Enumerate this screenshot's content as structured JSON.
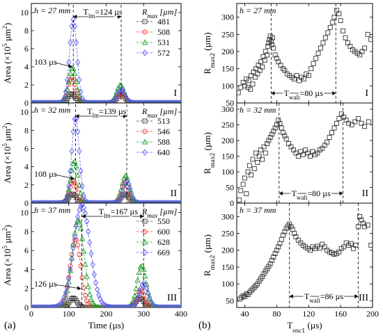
{
  "figure": {
    "label_a": "(a)",
    "label_b": "(b)"
  },
  "colors": {
    "black": "#333333",
    "red": "#e8322d",
    "green": "#1f9e2b",
    "blue": "#5a5af0",
    "axis": "#000000"
  },
  "chart_data": [
    {
      "type": "line",
      "panel": "a-I",
      "roman": "I",
      "h_label": "h = 27 mm",
      "t_label": "T_lm=124 µs",
      "delay_label": "103 µs",
      "ylabel": "Area (×10^5 µm^2)",
      "xlabel": "",
      "xlim": [
        0,
        400
      ],
      "ylim": [
        0,
        11
      ],
      "yticks": [
        0,
        2,
        4,
        6,
        8,
        10
      ],
      "xticks": [
        0,
        100,
        200,
        300,
        400
      ],
      "legend_title": "R_max [µm]",
      "series": [
        {
          "name": "481",
          "color": "black",
          "marker": "square",
          "peaks": [
            [
              108,
              1.0,
              10
            ],
            [
              240,
              1.0,
              10
            ]
          ]
        },
        {
          "name": "508",
          "color": "red",
          "marker": "circle",
          "peaks": [
            [
              108,
              2.8,
              10
            ],
            [
              238,
              1.1,
              10
            ]
          ]
        },
        {
          "name": "531",
          "color": "green",
          "marker": "triangle",
          "peaks": [
            [
              110,
              3.9,
              10
            ],
            [
              238,
              2.0,
              10
            ]
          ]
        },
        {
          "name": "572",
          "color": "blue",
          "marker": "diamond",
          "peaks": [
            [
              112,
              9.2,
              10
            ],
            [
              240,
              1.5,
              10
            ]
          ]
        }
      ]
    },
    {
      "type": "line",
      "panel": "a-II",
      "roman": "II",
      "h_label": "h = 32 mm",
      "t_label": "T_lm=139 µs",
      "delay_label": "108 µs",
      "ylabel": "Area (×10^5 µm^2)",
      "xlabel": "",
      "xlim": [
        0,
        400
      ],
      "ylim": [
        0,
        11
      ],
      "yticks": [
        0,
        2,
        4,
        6,
        8,
        10
      ],
      "xticks": [
        0,
        100,
        200,
        300,
        400
      ],
      "legend_title": "R_max [µm]",
      "series": [
        {
          "name": "513",
          "color": "black",
          "marker": "square",
          "peaks": [
            [
              110,
              1.0,
              10
            ],
            [
              250,
              1.0,
              10
            ]
          ]
        },
        {
          "name": "546",
          "color": "red",
          "marker": "circle",
          "peaks": [
            [
              112,
              2.4,
              10
            ],
            [
              250,
              2.2,
              10
            ]
          ]
        },
        {
          "name": "588",
          "color": "green",
          "marker": "triangle",
          "peaks": [
            [
              115,
              4.6,
              10
            ],
            [
              252,
              3.0,
              10
            ]
          ]
        },
        {
          "name": "640",
          "color": "blue",
          "marker": "diamond",
          "peaks": [
            [
              118,
              9.4,
              10
            ],
            [
              255,
              2.4,
              10
            ]
          ]
        }
      ]
    },
    {
      "type": "line",
      "panel": "a-III",
      "roman": "III",
      "h_label": "h = 37 mm",
      "t_label": "T_lm=167 µs",
      "delay_label": "126 µs",
      "ylabel": "Area (×10^5 µm^2)",
      "xlabel": "Time (µs)",
      "xlim": [
        0,
        400
      ],
      "ylim": [
        0,
        11
      ],
      "yticks": [
        0,
        2,
        4,
        6,
        8,
        10
      ],
      "xticks": [
        0,
        100,
        200,
        300,
        400
      ],
      "legend_title": "R_max [µm]",
      "series": [
        {
          "name": "550",
          "color": "black",
          "marker": "square",
          "peaks": [
            [
              112,
              1.0,
              10
            ],
            [
              290,
              1.0,
              10
            ]
          ]
        },
        {
          "name": "600",
          "color": "red",
          "marker": "circle",
          "peaks": [
            [
              118,
              7.2,
              14
            ],
            [
              292,
              1.8,
              10
            ]
          ]
        },
        {
          "name": "628",
          "color": "green",
          "marker": "triangle",
          "peaks": [
            [
              125,
              9.2,
              16
            ],
            [
              295,
              4.4,
              12
            ]
          ]
        },
        {
          "name": "669",
          "color": "blue",
          "marker": "diamond",
          "peaks": [
            [
              135,
              10.8,
              22
            ],
            [
              300,
              2.5,
              12
            ]
          ]
        }
      ]
    },
    {
      "type": "scatter",
      "panel": "b-I",
      "roman": "I",
      "h_label": "h = 27 mm",
      "t_label": "T_wall=80 µs",
      "ylabel": "R_max2 (µm)",
      "xlabel": "",
      "xlim": [
        30,
        200
      ],
      "ylim": [
        50,
        340
      ],
      "yticks": [
        50,
        100,
        150,
        200,
        250,
        300
      ],
      "xticks": [
        40,
        80,
        120,
        160,
        200
      ],
      "vlines": [
        73,
        154
      ],
      "points": [
        [
          32,
          80
        ],
        [
          35,
          95
        ],
        [
          38,
          110
        ],
        [
          40,
          100
        ],
        [
          42,
          120
        ],
        [
          44,
          95
        ],
        [
          45,
          115
        ],
        [
          47,
          90
        ],
        [
          48,
          130
        ],
        [
          50,
          105
        ],
        [
          51,
          140
        ],
        [
          53,
          125
        ],
        [
          54,
          150
        ],
        [
          56,
          135
        ],
        [
          57,
          160
        ],
        [
          59,
          145
        ],
        [
          60,
          170
        ],
        [
          62,
          155
        ],
        [
          63,
          185
        ],
        [
          65,
          175
        ],
        [
          66,
          200
        ],
        [
          68,
          190
        ],
        [
          69,
          215
        ],
        [
          70,
          225
        ],
        [
          71,
          235
        ],
        [
          72,
          245
        ],
        [
          73,
          230
        ],
        [
          74,
          220
        ],
        [
          75,
          240
        ],
        [
          76,
          210
        ],
        [
          78,
          190
        ],
        [
          80,
          180
        ],
        [
          82,
          170
        ],
        [
          85,
          160
        ],
        [
          88,
          150
        ],
        [
          90,
          145
        ],
        [
          93,
          135
        ],
        [
          96,
          130
        ],
        [
          99,
          125
        ],
        [
          102,
          120
        ],
        [
          105,
          130
        ],
        [
          108,
          115
        ],
        [
          111,
          125
        ],
        [
          114,
          120
        ],
        [
          117,
          135
        ],
        [
          120,
          130
        ],
        [
          123,
          150
        ],
        [
          126,
          165
        ],
        [
          129,
          180
        ],
        [
          132,
          195
        ],
        [
          135,
          210
        ],
        [
          138,
          225
        ],
        [
          141,
          240
        ],
        [
          144,
          255
        ],
        [
          147,
          270
        ],
        [
          150,
          285
        ],
        [
          152,
          300
        ],
        [
          155,
          320
        ],
        [
          158,
          310
        ],
        [
          160,
          290
        ],
        [
          163,
          260
        ],
        [
          166,
          240
        ],
        [
          169,
          225
        ],
        [
          172,
          215
        ],
        [
          175,
          205
        ],
        [
          178,
          200
        ],
        [
          181,
          195
        ],
        [
          184,
          190
        ],
        [
          187,
          200
        ],
        [
          190,
          210
        ],
        [
          194,
          250
        ],
        [
          198,
          235
        ]
      ]
    },
    {
      "type": "scatter",
      "panel": "b-II",
      "roman": "II",
      "h_label": "h = 32 mm",
      "t_label": "T_wall=80 µs",
      "ylabel": "R_max2 (µm)",
      "xlabel": "",
      "xlim": [
        30,
        200
      ],
      "ylim": [
        0,
        320
      ],
      "yticks": [
        0,
        50,
        100,
        150,
        200,
        250,
        300
      ],
      "xticks": [
        40,
        80,
        120,
        160,
        200
      ],
      "vlines": [
        83,
        163
      ],
      "points": [
        [
          33,
          10
        ],
        [
          35,
          40
        ],
        [
          38,
          60
        ],
        [
          40,
          80
        ],
        [
          42,
          30
        ],
        [
          44,
          100
        ],
        [
          46,
          120
        ],
        [
          48,
          90
        ],
        [
          50,
          140
        ],
        [
          52,
          110
        ],
        [
          54,
          160
        ],
        [
          56,
          130
        ],
        [
          58,
          150
        ],
        [
          60,
          170
        ],
        [
          62,
          140
        ],
        [
          64,
          180
        ],
        [
          66,
          160
        ],
        [
          68,
          190
        ],
        [
          70,
          200
        ],
        [
          72,
          210
        ],
        [
          74,
          220
        ],
        [
          76,
          230
        ],
        [
          78,
          240
        ],
        [
          80,
          250
        ],
        [
          82,
          265
        ],
        [
          84,
          255
        ],
        [
          86,
          240
        ],
        [
          88,
          225
        ],
        [
          90,
          215
        ],
        [
          92,
          205
        ],
        [
          95,
          190
        ],
        [
          98,
          180
        ],
        [
          101,
          170
        ],
        [
          104,
          160
        ],
        [
          107,
          150
        ],
        [
          110,
          165
        ],
        [
          113,
          155
        ],
        [
          116,
          170
        ],
        [
          119,
          160
        ],
        [
          122,
          150
        ],
        [
          125,
          165
        ],
        [
          128,
          155
        ],
        [
          131,
          160
        ],
        [
          134,
          170
        ],
        [
          137,
          175
        ],
        [
          140,
          185
        ],
        [
          143,
          195
        ],
        [
          146,
          210
        ],
        [
          149,
          225
        ],
        [
          152,
          240
        ],
        [
          155,
          255
        ],
        [
          158,
          270
        ],
        [
          161,
          285
        ],
        [
          164,
          275
        ],
        [
          167,
          265
        ],
        [
          170,
          255
        ],
        [
          174,
          250
        ],
        [
          178,
          260
        ],
        [
          182,
          270
        ],
        [
          186,
          255
        ],
        [
          190,
          245
        ],
        [
          195,
          260
        ]
      ]
    },
    {
      "type": "scatter",
      "panel": "b-III",
      "roman": "III",
      "h_label": "h = 37 mm",
      "t_label": "T_wall=86 µs",
      "ylabel": "R_max2 (µm)",
      "xlabel": "T_osc1 (µs)",
      "xlim": [
        30,
        200
      ],
      "ylim": [
        30,
        340
      ],
      "yticks": [
        50,
        100,
        150,
        200,
        250,
        300
      ],
      "xticks": [
        40,
        80,
        120,
        160,
        200
      ],
      "vlines": [
        96,
        182
      ],
      "points": [
        [
          34,
          55
        ],
        [
          36,
          60
        ],
        [
          38,
          65
        ],
        [
          40,
          62
        ],
        [
          42,
          70
        ],
        [
          44,
          68
        ],
        [
          46,
          75
        ],
        [
          48,
          80
        ],
        [
          50,
          85
        ],
        [
          52,
          90
        ],
        [
          54,
          95
        ],
        [
          56,
          100
        ],
        [
          58,
          108
        ],
        [
          60,
          115
        ],
        [
          62,
          122
        ],
        [
          64,
          130
        ],
        [
          66,
          138
        ],
        [
          68,
          145
        ],
        [
          70,
          152
        ],
        [
          72,
          160
        ],
        [
          74,
          170
        ],
        [
          76,
          180
        ],
        [
          78,
          190
        ],
        [
          80,
          200
        ],
        [
          82,
          210
        ],
        [
          84,
          220
        ],
        [
          86,
          232
        ],
        [
          88,
          245
        ],
        [
          90,
          255
        ],
        [
          92,
          265
        ],
        [
          94,
          272
        ],
        [
          96,
          278
        ],
        [
          98,
          270
        ],
        [
          100,
          262
        ],
        [
          102,
          250
        ],
        [
          104,
          240
        ],
        [
          107,
          230
        ],
        [
          110,
          222
        ],
        [
          113,
          215
        ],
        [
          116,
          210
        ],
        [
          119,
          205
        ],
        [
          122,
          200
        ],
        [
          125,
          210
        ],
        [
          128,
          205
        ],
        [
          131,
          212
        ],
        [
          134,
          206
        ],
        [
          137,
          218
        ],
        [
          140,
          210
        ],
        [
          143,
          200
        ],
        [
          146,
          195
        ],
        [
          149,
          192
        ],
        [
          152,
          188
        ],
        [
          155,
          190
        ],
        [
          158,
          195
        ],
        [
          161,
          205
        ],
        [
          164,
          210
        ],
        [
          167,
          222
        ],
        [
          170,
          215
        ],
        [
          173,
          220
        ],
        [
          176,
          205
        ],
        [
          179,
          215
        ],
        [
          182,
          270
        ],
        [
          184,
          300
        ],
        [
          186,
          290
        ],
        [
          188,
          280
        ],
        [
          190,
          270
        ],
        [
          194,
          275
        ],
        [
          198,
          215
        ]
      ]
    }
  ]
}
